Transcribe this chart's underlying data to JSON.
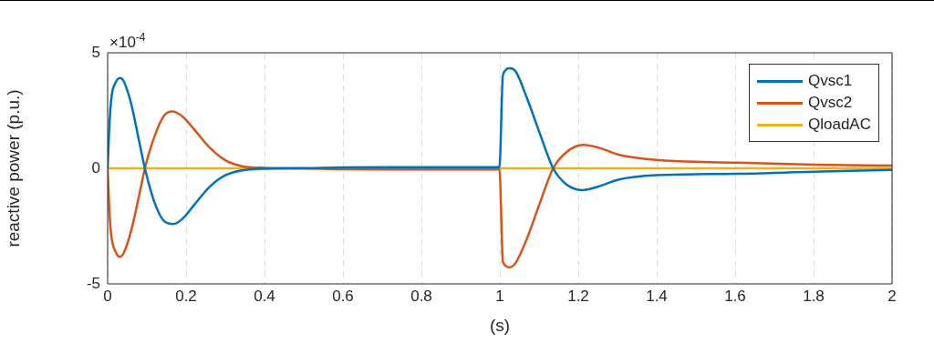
{
  "chart_data": {
    "type": "line",
    "xlabel": "(s)",
    "ylabel": "reactive power (p.u.)",
    "annotations": [
      "×10$^{-4}$"
    ],
    "xlim": [
      0,
      2
    ],
    "xticks": [
      0,
      0.2,
      0.4,
      0.6,
      0.8,
      1,
      1.2,
      1.4,
      1.6,
      1.8,
      2
    ],
    "ylim": [
      -5,
      5
    ],
    "yticks": [
      -5,
      0,
      5
    ],
    "grid": "x",
    "legend": "top right",
    "marker": "none",
    "line_style": "solid",
    "series": [
      {
        "name": "Qvsc1",
        "color": "#0072bd",
        "x": [
          0,
          0.005,
          0.01,
          0.02,
          0.031,
          0.04,
          0.06,
          0.08,
          0.095,
          0.12,
          0.145,
          0.167,
          0.19,
          0.22,
          0.26,
          0.3,
          0.34,
          0.4,
          0.5,
          0.6,
          0.8,
          0.999,
          1.008,
          1.026,
          1.04,
          1.07,
          1.1,
          1.136,
          1.17,
          1.209,
          1.25,
          1.3,
          1.4,
          1.6,
          1.8,
          2
        ],
        "values": [
          0,
          2.0,
          3.1,
          3.7,
          3.91,
          3.8,
          2.8,
          1.2,
          0,
          -1.5,
          -2.3,
          -2.41,
          -2.2,
          -1.6,
          -0.8,
          -0.3,
          -0.1,
          -0.02,
          0,
          0.04,
          0.05,
          0.05,
          4.05,
          4.33,
          4.2,
          3.0,
          1.6,
          0,
          -0.7,
          -0.94,
          -0.8,
          -0.5,
          -0.3,
          -0.24,
          -0.15,
          -0.07
        ]
      },
      {
        "name": "Qvsc2",
        "color": "#d95319",
        "x": [
          0,
          0.005,
          0.01,
          0.02,
          0.031,
          0.04,
          0.06,
          0.08,
          0.095,
          0.12,
          0.145,
          0.165,
          0.19,
          0.22,
          0.26,
          0.3,
          0.34,
          0.4,
          0.5,
          0.6,
          0.8,
          0.999,
          1.008,
          1.026,
          1.04,
          1.07,
          1.1,
          1.136,
          1.17,
          1.213,
          1.26,
          1.3,
          1.4,
          1.6,
          1.8,
          2
        ],
        "values": [
          0,
          -2.0,
          -3.0,
          -3.6,
          -3.83,
          -3.7,
          -2.7,
          -1.2,
          0,
          1.4,
          2.3,
          2.46,
          2.25,
          1.7,
          0.9,
          0.35,
          0.1,
          0.02,
          0,
          -0.04,
          -0.05,
          -0.05,
          -4.06,
          -4.28,
          -4.1,
          -3.0,
          -1.6,
          0,
          0.7,
          1.01,
          0.85,
          0.6,
          0.36,
          0.25,
          0.16,
          0.12
        ]
      },
      {
        "name": "QloadAC",
        "color": "#edb120",
        "x": [
          0,
          2
        ],
        "values": [
          0,
          0
        ]
      }
    ]
  }
}
